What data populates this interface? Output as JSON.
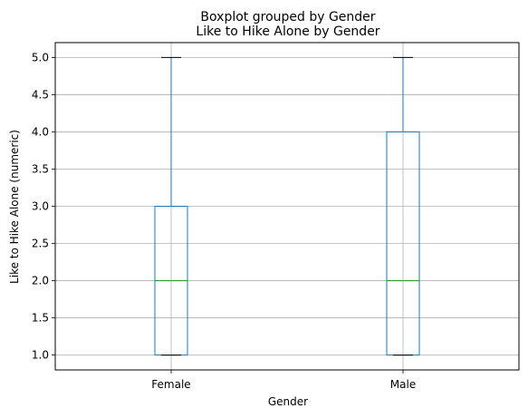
{
  "chart_data": {
    "type": "box",
    "suptitle": "Boxplot grouped by Gender",
    "title": "Like to Hike Alone by Gender",
    "xlabel": "Gender",
    "ylabel": "Like to Hike Alone (numeric)",
    "ylim": [
      0.8,
      5.2
    ],
    "yticks": [
      1.0,
      1.5,
      2.0,
      2.5,
      3.0,
      3.5,
      4.0,
      4.5,
      5.0
    ],
    "ytick_labels": [
      "1.0",
      "1.5",
      "2.0",
      "2.5",
      "3.0",
      "3.5",
      "4.0",
      "4.5",
      "5.0"
    ],
    "grid": true,
    "categories": [
      "Female",
      "Male"
    ],
    "boxes": [
      {
        "category": "Female",
        "whisker_low": 1.0,
        "q1": 1.0,
        "median": 2.0,
        "q3": 3.0,
        "whisker_high": 5.0
      },
      {
        "category": "Male",
        "whisker_low": 1.0,
        "q1": 1.0,
        "median": 2.0,
        "q3": 4.0,
        "whisker_high": 5.0
      }
    ],
    "colors": {
      "box": "#1f77b4",
      "median": "#2ca02c",
      "cap": "#000000",
      "grid": "#b0b0b0"
    }
  }
}
